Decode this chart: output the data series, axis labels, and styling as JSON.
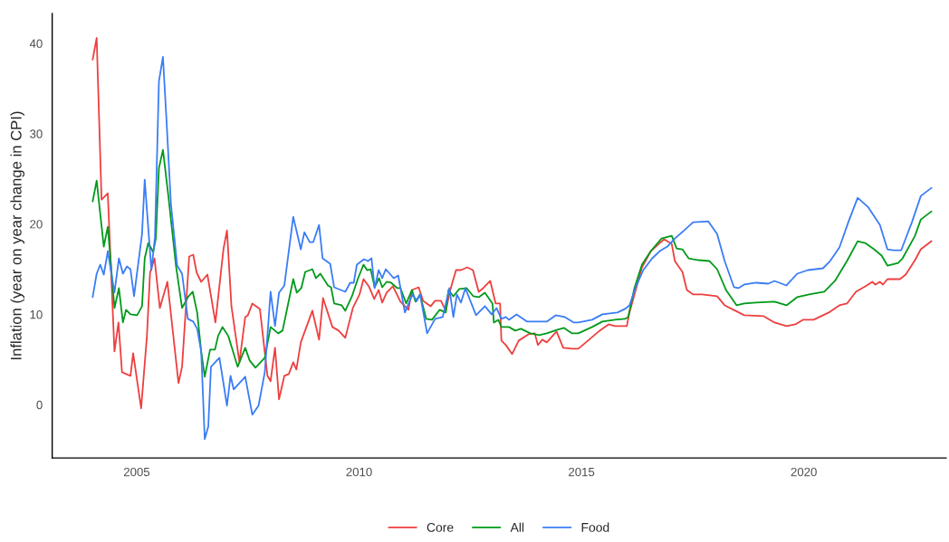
{
  "chart_data": {
    "type": "line",
    "ylabel": "Inflation (year on year change in CPI)",
    "xlim": [
      2003.1,
      2023.2
    ],
    "xticks": [
      2005,
      2010,
      2015,
      2020
    ],
    "ylim": [
      -5.9,
      43.3
    ],
    "yticks": [
      0,
      10,
      20,
      30,
      40
    ],
    "grid": false,
    "legend": "bottom",
    "marker": "none",
    "line_style": "solid",
    "series": [
      {
        "name": "Core",
        "color": "#ee3f3f",
        "x": [
          2004.01,
          2004.1,
          2004.21,
          2004.35,
          2004.5,
          2004.59,
          2004.67,
          2004.86,
          2004.92,
          2005.1,
          2005.23,
          2005.3,
          2005.4,
          2005.52,
          2005.69,
          2005.94,
          2006.02,
          2006.18,
          2006.27,
          2006.35,
          2006.45,
          2006.59,
          2006.77,
          2006.95,
          2007.03,
          2007.13,
          2007.31,
          2007.44,
          2007.5,
          2007.6,
          2007.77,
          2007.94,
          2008.01,
          2008.11,
          2008.2,
          2008.32,
          2008.42,
          2008.52,
          2008.59,
          2008.69,
          2008.95,
          2009.1,
          2009.19,
          2009.4,
          2009.54,
          2009.69,
          2009.86,
          2010.01,
          2010.1,
          2010.22,
          2010.34,
          2010.44,
          2010.52,
          2010.62,
          2010.76,
          2010.93,
          2011.03,
          2011.11,
          2011.19,
          2011.34,
          2011.44,
          2011.61,
          2011.71,
          2011.84,
          2011.95,
          2012.05,
          2012.18,
          2012.29,
          2012.43,
          2012.56,
          2012.69,
          2012.79,
          2012.95,
          2013.07,
          2013.17,
          2013.2,
          2013.3,
          2013.44,
          2013.59,
          2013.81,
          2013.95,
          2014.02,
          2014.12,
          2014.22,
          2014.44,
          2014.59,
          2014.79,
          2014.93,
          2015.1,
          2015.41,
          2015.61,
          2015.75,
          2016.02,
          2016.08,
          2016.36,
          2016.56,
          2016.76,
          2016.86,
          2017.03,
          2017.1,
          2017.27,
          2017.37,
          2017.51,
          2017.71,
          2018.05,
          2018.22,
          2018.46,
          2018.66,
          2019.1,
          2019.34,
          2019.61,
          2019.81,
          2019.98,
          2020.22,
          2020.56,
          2020.8,
          2020.97,
          2021.17,
          2021.38,
          2021.54,
          2021.61,
          2021.71,
          2021.78,
          2021.88,
          2022.16,
          2022.29,
          2022.5,
          2022.63,
          2022.87
        ],
        "values": [
          38.2,
          40.6,
          22.7,
          23.4,
          5.9,
          9.1,
          3.6,
          3.2,
          5.7,
          -0.4,
          7.6,
          14.6,
          16.2,
          10.7,
          13.6,
          2.4,
          4.2,
          16.4,
          16.6,
          14.6,
          13.6,
          14.4,
          9.1,
          17.2,
          19.3,
          10.9,
          4.7,
          9.7,
          9.9,
          11.2,
          10.6,
          3.2,
          2.6,
          6.3,
          0.6,
          3.2,
          3.4,
          4.7,
          3.9,
          6.9,
          10.4,
          7.2,
          11.8,
          8.6,
          8.2,
          7.4,
          10.7,
          12.2,
          13.9,
          13.1,
          11.7,
          12.7,
          11.3,
          12.4,
          13.1,
          11.4,
          10.9,
          10.5,
          12.7,
          13.0,
          11.5,
          10.9,
          11.5,
          11.5,
          10.4,
          12.7,
          14.9,
          14.9,
          15.2,
          14.9,
          12.5,
          12.9,
          13.7,
          11.2,
          11.2,
          7.1,
          6.6,
          5.6,
          7.1,
          7.8,
          7.9,
          6.6,
          7.2,
          6.9,
          8.1,
          6.3,
          6.2,
          6.2,
          6.9,
          8.2,
          8.9,
          8.7,
          8.7,
          10.2,
          15.2,
          17.0,
          17.9,
          18.3,
          17.8,
          15.9,
          14.7,
          12.7,
          12.2,
          12.2,
          12.0,
          11.0,
          10.4,
          9.9,
          9.8,
          9.1,
          8.7,
          8.9,
          9.4,
          9.4,
          10.2,
          11.0,
          11.2,
          12.5,
          13.1,
          13.6,
          13.3,
          13.6,
          13.3,
          13.9,
          13.9,
          14.4,
          16.0,
          17.2,
          18.1
        ]
      },
      {
        "name": "All",
        "color": "#009a1a",
        "x": [
          2004.01,
          2004.1,
          2004.26,
          2004.35,
          2004.5,
          2004.6,
          2004.69,
          2004.76,
          2004.86,
          2005.01,
          2005.12,
          2005.18,
          2005.26,
          2005.37,
          2005.43,
          2005.5,
          2005.59,
          2005.71,
          2005.88,
          2006.02,
          2006.15,
          2006.26,
          2006.36,
          2006.45,
          2006.53,
          2006.65,
          2006.76,
          2006.83,
          2006.93,
          2007.06,
          2007.27,
          2007.44,
          2007.54,
          2007.67,
          2007.88,
          2008.01,
          2008.18,
          2008.28,
          2008.52,
          2008.6,
          2008.7,
          2008.79,
          2008.95,
          2009.03,
          2009.13,
          2009.3,
          2009.37,
          2009.44,
          2009.61,
          2009.69,
          2009.84,
          2009.97,
          2010.1,
          2010.18,
          2010.26,
          2010.35,
          2010.45,
          2010.52,
          2010.62,
          2010.72,
          2010.86,
          2010.93,
          2011.06,
          2011.19,
          2011.27,
          2011.37,
          2011.51,
          2011.64,
          2011.81,
          2011.95,
          2012.01,
          2012.12,
          2012.25,
          2012.42,
          2012.57,
          2012.69,
          2012.83,
          2013.0,
          2013.03,
          2013.13,
          2013.2,
          2013.37,
          2013.51,
          2013.64,
          2013.85,
          2014.05,
          2014.22,
          2014.46,
          2014.61,
          2014.79,
          2014.93,
          2015.24,
          2015.47,
          2015.75,
          2015.98,
          2016.05,
          2016.19,
          2016.36,
          2016.56,
          2016.8,
          2017.03,
          2017.14,
          2017.27,
          2017.41,
          2017.64,
          2017.88,
          2018.05,
          2018.25,
          2018.49,
          2018.66,
          2018.93,
          2019.34,
          2019.61,
          2019.85,
          2020.12,
          2020.46,
          2020.7,
          2020.97,
          2021.21,
          2021.38,
          2021.58,
          2021.75,
          2021.88,
          2022.12,
          2022.22,
          2022.5,
          2022.63,
          2022.87
        ],
        "values": [
          22.5,
          24.8,
          17.5,
          19.7,
          10.7,
          12.9,
          9.1,
          10.5,
          10.0,
          9.9,
          10.9,
          16.2,
          17.9,
          16.9,
          18.4,
          26.2,
          28.2,
          23.2,
          15.5,
          10.7,
          11.9,
          12.5,
          10.2,
          5.9,
          3.1,
          6.1,
          6.1,
          7.6,
          8.6,
          7.6,
          4.2,
          6.3,
          4.9,
          4.1,
          5.2,
          8.6,
          7.9,
          8.2,
          13.9,
          12.4,
          12.9,
          14.7,
          15.0,
          14.0,
          14.5,
          13.2,
          13.0,
          11.2,
          11.0,
          10.4,
          12.0,
          13.9,
          15.5,
          14.9,
          15.0,
          13.0,
          14.0,
          13.0,
          13.6,
          13.5,
          12.9,
          12.9,
          11.2,
          12.7,
          11.4,
          12.2,
          9.5,
          9.4,
          10.5,
          10.2,
          12.7,
          12.0,
          12.8,
          12.9,
          12.0,
          11.9,
          12.4,
          11.2,
          9.1,
          9.4,
          8.6,
          8.6,
          8.2,
          8.4,
          7.9,
          7.7,
          7.9,
          8.3,
          8.5,
          7.9,
          7.9,
          8.6,
          9.2,
          9.4,
          9.5,
          9.7,
          12.9,
          15.5,
          17.0,
          18.4,
          18.7,
          17.3,
          17.2,
          16.2,
          16.0,
          15.9,
          15.0,
          12.7,
          11.0,
          11.2,
          11.3,
          11.4,
          11.0,
          11.9,
          12.2,
          12.5,
          13.7,
          15.9,
          18.1,
          17.9,
          17.2,
          16.5,
          15.4,
          15.7,
          16.2,
          18.7,
          20.5,
          21.4
        ]
      },
      {
        "name": "Food",
        "color": "#3a7df5",
        "x": [
          2004.01,
          2004.1,
          2004.18,
          2004.26,
          2004.35,
          2004.5,
          2004.6,
          2004.69,
          2004.78,
          2004.86,
          2004.94,
          2005.12,
          2005.18,
          2005.33,
          2005.41,
          2005.5,
          2005.59,
          2005.67,
          2005.77,
          2005.91,
          2006.02,
          2006.15,
          2006.27,
          2006.36,
          2006.45,
          2006.53,
          2006.61,
          2006.67,
          2006.86,
          2007.03,
          2007.11,
          2007.18,
          2007.44,
          2007.6,
          2007.74,
          2007.88,
          2008.01,
          2008.11,
          2008.2,
          2008.32,
          2008.52,
          2008.69,
          2008.77,
          2008.89,
          2008.97,
          2009.1,
          2009.18,
          2009.35,
          2009.44,
          2009.69,
          2009.8,
          2009.88,
          2009.95,
          2010.11,
          2010.2,
          2010.28,
          2010.35,
          2010.44,
          2010.52,
          2010.6,
          2010.78,
          2010.88,
          2011.03,
          2011.2,
          2011.3,
          2011.37,
          2011.53,
          2011.71,
          2011.88,
          2012.03,
          2012.12,
          2012.2,
          2012.29,
          2012.39,
          2012.63,
          2012.83,
          2012.98,
          2013.09,
          2013.2,
          2013.3,
          2013.37,
          2013.54,
          2013.78,
          2014.22,
          2014.42,
          2014.63,
          2014.83,
          2014.93,
          2015.24,
          2015.47,
          2015.81,
          2015.98,
          2016.08,
          2016.22,
          2016.39,
          2016.59,
          2016.76,
          2016.93,
          2017.1,
          2017.31,
          2017.51,
          2017.85,
          2018.05,
          2018.22,
          2018.43,
          2018.53,
          2018.66,
          2018.93,
          2019.2,
          2019.34,
          2019.61,
          2019.85,
          2020.09,
          2020.43,
          2020.59,
          2020.8,
          2021.0,
          2021.21,
          2021.44,
          2021.71,
          2021.88,
          2022.02,
          2022.19,
          2022.43,
          2022.63,
          2022.87
        ],
        "values": [
          11.9,
          14.5,
          15.5,
          14.4,
          17.0,
          12.4,
          16.2,
          14.5,
          15.3,
          15.0,
          12.0,
          18.9,
          24.9,
          14.9,
          18.5,
          35.8,
          38.5,
          31.5,
          22.2,
          15.4,
          14.5,
          9.5,
          9.2,
          8.4,
          5.9,
          -3.8,
          -2.4,
          4.2,
          5.2,
          -0.1,
          3.2,
          1.7,
          3.1,
          -1.1,
          -0.1,
          3.6,
          12.5,
          8.7,
          12.4,
          13.2,
          20.8,
          17.2,
          19.1,
          18.0,
          18.0,
          19.9,
          16.2,
          15.6,
          13.0,
          12.5,
          13.5,
          13.5,
          15.5,
          16.1,
          15.9,
          16.2,
          12.9,
          14.9,
          14.0,
          15.0,
          14.0,
          14.3,
          10.2,
          12.2,
          11.5,
          12.2,
          7.9,
          9.5,
          9.7,
          12.9,
          9.7,
          12.2,
          11.3,
          12.9,
          9.9,
          10.9,
          10.0,
          10.7,
          9.5,
          9.7,
          9.4,
          10.0,
          9.2,
          9.2,
          9.9,
          9.7,
          9.1,
          9.1,
          9.4,
          10.0,
          10.2,
          10.6,
          11.0,
          13.0,
          14.9,
          16.2,
          17.0,
          17.5,
          18.4,
          19.3,
          20.2,
          20.3,
          18.9,
          15.9,
          13.0,
          12.9,
          13.3,
          13.5,
          13.4,
          13.7,
          13.2,
          14.5,
          14.9,
          15.1,
          15.9,
          17.4,
          20.2,
          22.9,
          21.9,
          19.9,
          17.2,
          17.1,
          17.1,
          20.2,
          23.1,
          24.0
        ]
      }
    ]
  }
}
